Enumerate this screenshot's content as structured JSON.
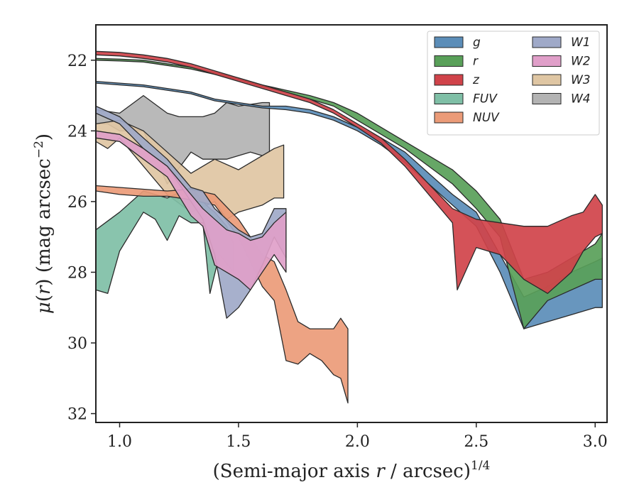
{
  "chart_data": {
    "type": "area",
    "xlabel": "(Semi-major axis r / arcsec)^1/4",
    "ylabel": "μ(r) (mag arcsec^−2)",
    "xlim": [
      0.9,
      3.05
    ],
    "ylim": [
      32.25,
      21.0
    ],
    "x_ticks": [
      "1.0",
      "1.5",
      "2.0",
      "2.5",
      "3.0"
    ],
    "y_ticks": [
      "22",
      "24",
      "26",
      "28",
      "30",
      "32"
    ],
    "legend_position": "top-right",
    "legend_columns": 2,
    "series": [
      {
        "name": "W4",
        "color": "#b3b3b3",
        "upper": [
          [
            0.9,
            23.4
          ],
          [
            1.0,
            23.5
          ],
          [
            1.1,
            23.0
          ],
          [
            1.2,
            23.5
          ],
          [
            1.25,
            23.6
          ],
          [
            1.3,
            23.6
          ],
          [
            1.35,
            23.6
          ],
          [
            1.4,
            23.5
          ],
          [
            1.45,
            23.2
          ],
          [
            1.5,
            23.3
          ],
          [
            1.6,
            23.2
          ],
          [
            1.63,
            23.2
          ]
        ],
        "lower": [
          [
            0.9,
            23.8
          ],
          [
            0.95,
            23.8
          ],
          [
            1.0,
            24.0
          ],
          [
            1.1,
            24.0
          ],
          [
            1.2,
            25.5
          ],
          [
            1.3,
            24.6
          ],
          [
            1.35,
            24.8
          ],
          [
            1.4,
            24.8
          ],
          [
            1.45,
            24.8
          ],
          [
            1.5,
            24.7
          ],
          [
            1.55,
            24.6
          ],
          [
            1.6,
            24.7
          ],
          [
            1.63,
            24.6
          ]
        ]
      },
      {
        "name": "W3",
        "color": "#dfc6a3",
        "upper": [
          [
            0.9,
            23.8
          ],
          [
            1.0,
            23.7
          ],
          [
            1.1,
            24.0
          ],
          [
            1.2,
            24.6
          ],
          [
            1.3,
            25.2
          ],
          [
            1.4,
            24.8
          ],
          [
            1.5,
            25.1
          ],
          [
            1.6,
            24.7
          ],
          [
            1.65,
            24.5
          ],
          [
            1.69,
            24.4
          ]
        ],
        "lower": [
          [
            0.9,
            24.3
          ],
          [
            0.95,
            24.5
          ],
          [
            1.0,
            24.2
          ],
          [
            1.1,
            25.0
          ],
          [
            1.2,
            25.8
          ],
          [
            1.3,
            26.3
          ],
          [
            1.4,
            26.0
          ],
          [
            1.45,
            26.5
          ],
          [
            1.5,
            26.3
          ],
          [
            1.6,
            26.1
          ],
          [
            1.65,
            25.9
          ],
          [
            1.69,
            25.9
          ]
        ]
      },
      {
        "name": "FUV",
        "color": "#7fbfa6",
        "upper": [
          [
            0.9,
            26.8
          ],
          [
            1.0,
            26.3
          ],
          [
            1.1,
            25.7
          ],
          [
            1.2,
            25.9
          ],
          [
            1.3,
            25.6
          ],
          [
            1.35,
            26.0
          ],
          [
            1.38,
            26.2
          ],
          [
            1.4,
            26.3
          ],
          [
            1.45,
            26.7
          ],
          [
            1.48,
            27.2
          ]
        ],
        "lower": [
          [
            0.9,
            28.5
          ],
          [
            0.95,
            28.6
          ],
          [
            1.0,
            27.4
          ],
          [
            1.1,
            26.3
          ],
          [
            1.15,
            26.5
          ],
          [
            1.2,
            27.1
          ],
          [
            1.25,
            26.4
          ],
          [
            1.3,
            26.6
          ],
          [
            1.35,
            26.6
          ],
          [
            1.38,
            28.6
          ],
          [
            1.42,
            27.5
          ],
          [
            1.48,
            28.0
          ]
        ]
      },
      {
        "name": "NUV",
        "color": "#eb9b78",
        "upper": [
          [
            0.9,
            25.55
          ],
          [
            1.0,
            25.6
          ],
          [
            1.1,
            25.65
          ],
          [
            1.2,
            25.7
          ],
          [
            1.3,
            25.65
          ],
          [
            1.4,
            25.8
          ],
          [
            1.5,
            26.5
          ],
          [
            1.6,
            27.5
          ],
          [
            1.65,
            27.7
          ],
          [
            1.7,
            28.5
          ],
          [
            1.75,
            29.4
          ],
          [
            1.8,
            29.6
          ],
          [
            1.85,
            29.6
          ],
          [
            1.9,
            29.6
          ],
          [
            1.93,
            29.3
          ],
          [
            1.96,
            29.6
          ]
        ],
        "lower": [
          [
            0.9,
            25.7
          ],
          [
            1.0,
            25.8
          ],
          [
            1.1,
            25.85
          ],
          [
            1.2,
            25.85
          ],
          [
            1.3,
            25.95
          ],
          [
            1.4,
            26.1
          ],
          [
            1.5,
            27.0
          ],
          [
            1.6,
            28.4
          ],
          [
            1.65,
            28.8
          ],
          [
            1.7,
            30.5
          ],
          [
            1.75,
            30.6
          ],
          [
            1.8,
            30.3
          ],
          [
            1.85,
            30.5
          ],
          [
            1.9,
            30.9
          ],
          [
            1.93,
            31.0
          ],
          [
            1.96,
            31.7
          ]
        ]
      },
      {
        "name": "W1",
        "color": "#9fa9c8",
        "upper": [
          [
            0.9,
            23.3
          ],
          [
            1.0,
            23.6
          ],
          [
            1.1,
            24.2
          ],
          [
            1.2,
            24.8
          ],
          [
            1.3,
            25.6
          ],
          [
            1.35,
            25.7
          ],
          [
            1.4,
            26.2
          ],
          [
            1.45,
            26.5
          ],
          [
            1.5,
            26.8
          ],
          [
            1.55,
            27.0
          ],
          [
            1.6,
            26.9
          ],
          [
            1.65,
            26.2
          ],
          [
            1.7,
            26.2
          ]
        ],
        "lower": [
          [
            0.9,
            23.5
          ],
          [
            1.0,
            23.8
          ],
          [
            1.1,
            24.5
          ],
          [
            1.2,
            25.0
          ],
          [
            1.3,
            26.0
          ],
          [
            1.35,
            26.5
          ],
          [
            1.4,
            27.5
          ],
          [
            1.45,
            29.3
          ],
          [
            1.5,
            29.0
          ],
          [
            1.55,
            28.5
          ],
          [
            1.6,
            27.8
          ],
          [
            1.65,
            27.0
          ],
          [
            1.7,
            27.6
          ]
        ]
      },
      {
        "name": "W2",
        "color": "#e09fc9",
        "upper": [
          [
            0.9,
            24.0
          ],
          [
            1.0,
            24.1
          ],
          [
            1.1,
            24.5
          ],
          [
            1.2,
            25.0
          ],
          [
            1.3,
            25.8
          ],
          [
            1.35,
            26.2
          ],
          [
            1.4,
            26.5
          ],
          [
            1.45,
            26.8
          ],
          [
            1.5,
            26.9
          ],
          [
            1.55,
            27.1
          ],
          [
            1.6,
            27.0
          ],
          [
            1.65,
            26.6
          ],
          [
            1.7,
            26.3
          ]
        ],
        "lower": [
          [
            0.9,
            24.2
          ],
          [
            1.0,
            24.3
          ],
          [
            1.1,
            24.8
          ],
          [
            1.2,
            25.3
          ],
          [
            1.3,
            26.4
          ],
          [
            1.35,
            26.7
          ],
          [
            1.4,
            27.8
          ],
          [
            1.45,
            28.0
          ],
          [
            1.5,
            28.2
          ],
          [
            1.55,
            28.5
          ],
          [
            1.6,
            28.0
          ],
          [
            1.65,
            27.5
          ],
          [
            1.7,
            28.0
          ]
        ]
      },
      {
        "name": "g",
        "color": "#5b8db8",
        "upper": [
          [
            0.9,
            22.6
          ],
          [
            1.0,
            22.65
          ],
          [
            1.1,
            22.7
          ],
          [
            1.2,
            22.8
          ],
          [
            1.3,
            22.9
          ],
          [
            1.4,
            23.1
          ],
          [
            1.5,
            23.2
          ],
          [
            1.6,
            23.3
          ],
          [
            1.7,
            23.3
          ],
          [
            1.8,
            23.4
          ],
          [
            1.9,
            23.6
          ],
          [
            2.0,
            23.9
          ],
          [
            2.1,
            24.2
          ],
          [
            2.2,
            24.6
          ],
          [
            2.3,
            25.2
          ],
          [
            2.4,
            25.8
          ],
          [
            2.5,
            26.3
          ],
          [
            2.6,
            27.5
          ],
          [
            2.7,
            28.7
          ],
          [
            2.8,
            28.4
          ],
          [
            2.9,
            28.0
          ],
          [
            3.0,
            27.7
          ],
          [
            3.03,
            27.6
          ]
        ],
        "lower": [
          [
            0.9,
            22.65
          ],
          [
            1.0,
            22.7
          ],
          [
            1.1,
            22.75
          ],
          [
            1.2,
            22.85
          ],
          [
            1.3,
            22.95
          ],
          [
            1.4,
            23.15
          ],
          [
            1.5,
            23.25
          ],
          [
            1.6,
            23.35
          ],
          [
            1.7,
            23.4
          ],
          [
            1.8,
            23.5
          ],
          [
            1.9,
            23.7
          ],
          [
            2.0,
            24.0
          ],
          [
            2.1,
            24.4
          ],
          [
            2.2,
            24.9
          ],
          [
            2.3,
            25.5
          ],
          [
            2.4,
            26.1
          ],
          [
            2.5,
            26.7
          ],
          [
            2.6,
            28.0
          ],
          [
            2.7,
            29.6
          ],
          [
            2.8,
            29.4
          ],
          [
            2.9,
            29.2
          ],
          [
            3.0,
            29.0
          ],
          [
            3.03,
            29.0
          ]
        ]
      },
      {
        "name": "r",
        "color": "#59a059",
        "upper": [
          [
            0.9,
            21.95
          ],
          [
            1.0,
            21.97
          ],
          [
            1.1,
            22.0
          ],
          [
            1.2,
            22.1
          ],
          [
            1.3,
            22.2
          ],
          [
            1.4,
            22.35
          ],
          [
            1.5,
            22.5
          ],
          [
            1.6,
            22.7
          ],
          [
            1.7,
            22.85
          ],
          [
            1.8,
            23.0
          ],
          [
            1.9,
            23.2
          ],
          [
            2.0,
            23.5
          ],
          [
            2.1,
            23.9
          ],
          [
            2.2,
            24.3
          ],
          [
            2.3,
            24.7
          ],
          [
            2.4,
            25.1
          ],
          [
            2.5,
            25.7
          ],
          [
            2.6,
            26.5
          ],
          [
            2.7,
            28.2
          ],
          [
            2.8,
            28.0
          ],
          [
            2.9,
            27.6
          ],
          [
            3.0,
            27.2
          ],
          [
            3.03,
            26.9
          ]
        ],
        "lower": [
          [
            0.9,
            22.0
          ],
          [
            1.0,
            22.02
          ],
          [
            1.1,
            22.05
          ],
          [
            1.2,
            22.15
          ],
          [
            1.3,
            22.25
          ],
          [
            1.4,
            22.4
          ],
          [
            1.5,
            22.55
          ],
          [
            1.6,
            22.75
          ],
          [
            1.7,
            22.9
          ],
          [
            1.8,
            23.1
          ],
          [
            1.9,
            23.3
          ],
          [
            2.0,
            23.7
          ],
          [
            2.1,
            24.1
          ],
          [
            2.2,
            24.5
          ],
          [
            2.3,
            25.0
          ],
          [
            2.4,
            25.5
          ],
          [
            2.5,
            26.2
          ],
          [
            2.6,
            27.0
          ],
          [
            2.7,
            29.6
          ],
          [
            2.8,
            28.8
          ],
          [
            2.9,
            28.5
          ],
          [
            3.0,
            28.2
          ],
          [
            3.03,
            28.2
          ]
        ]
      },
      {
        "name": "z",
        "color": "#d0434a",
        "upper": [
          [
            0.9,
            21.75
          ],
          [
            1.0,
            21.78
          ],
          [
            1.1,
            21.85
          ],
          [
            1.2,
            21.95
          ],
          [
            1.3,
            22.1
          ],
          [
            1.4,
            22.3
          ],
          [
            1.5,
            22.5
          ],
          [
            1.6,
            22.7
          ],
          [
            1.7,
            22.9
          ],
          [
            1.8,
            23.1
          ],
          [
            1.9,
            23.4
          ],
          [
            2.0,
            23.8
          ],
          [
            2.1,
            24.2
          ],
          [
            2.2,
            24.8
          ],
          [
            2.3,
            25.5
          ],
          [
            2.4,
            26.2
          ],
          [
            2.5,
            26.5
          ],
          [
            2.6,
            26.6
          ],
          [
            2.7,
            26.7
          ],
          [
            2.8,
            26.7
          ],
          [
            2.9,
            26.4
          ],
          [
            2.95,
            26.3
          ],
          [
            3.0,
            25.8
          ],
          [
            3.03,
            26.1
          ]
        ],
        "lower": [
          [
            0.9,
            21.85
          ],
          [
            1.0,
            21.88
          ],
          [
            1.1,
            21.95
          ],
          [
            1.2,
            22.05
          ],
          [
            1.3,
            22.2
          ],
          [
            1.4,
            22.4
          ],
          [
            1.5,
            22.6
          ],
          [
            1.6,
            22.8
          ],
          [
            1.7,
            23.0
          ],
          [
            1.8,
            23.2
          ],
          [
            1.9,
            23.5
          ],
          [
            2.0,
            23.9
          ],
          [
            2.1,
            24.35
          ],
          [
            2.2,
            25.0
          ],
          [
            2.3,
            25.8
          ],
          [
            2.4,
            26.6
          ],
          [
            2.42,
            28.5
          ],
          [
            2.5,
            27.3
          ],
          [
            2.6,
            27.5
          ],
          [
            2.7,
            28.2
          ],
          [
            2.8,
            28.6
          ],
          [
            2.9,
            28.0
          ],
          [
            2.95,
            27.4
          ],
          [
            3.0,
            27.0
          ],
          [
            3.03,
            26.9
          ]
        ]
      }
    ]
  }
}
